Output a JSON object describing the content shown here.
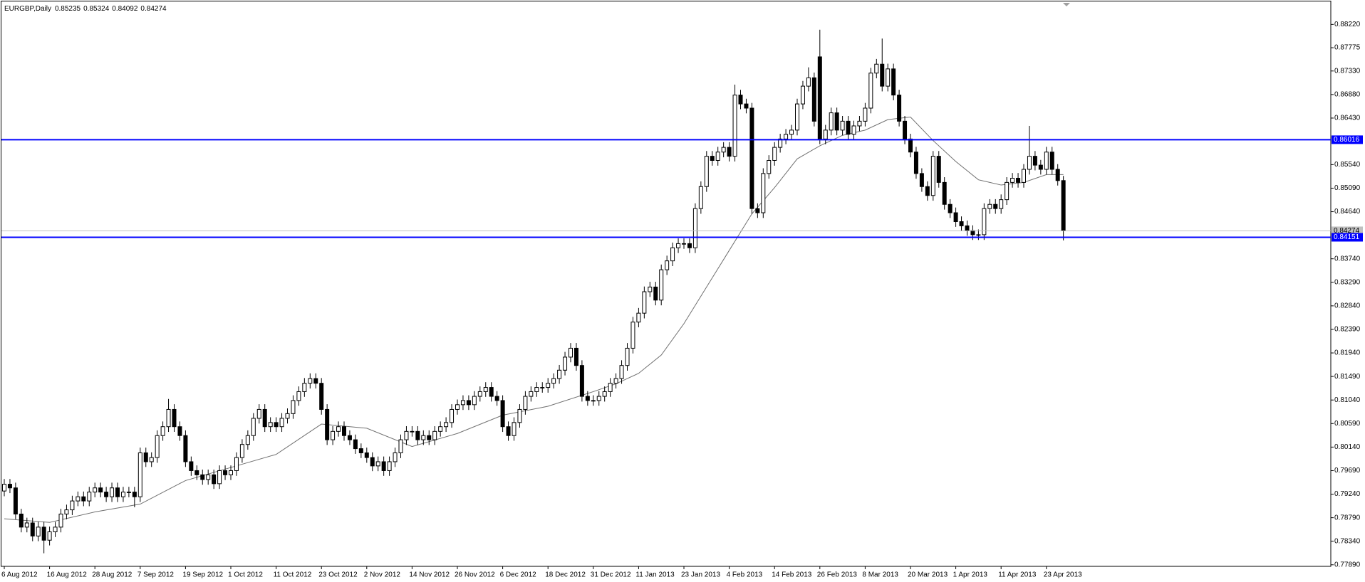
{
  "chart_data": {
    "type": "candlestick",
    "title": "EURGBP,Daily",
    "categories": [
      "6 Aug 2012",
      null,
      null,
      null,
      null,
      null,
      null,
      null,
      "16 Aug 2012",
      null,
      null,
      null,
      null,
      null,
      null,
      null,
      "28 Aug 2012",
      null,
      null,
      null,
      null,
      null,
      null,
      null,
      "7 Sep 2012",
      null,
      null,
      null,
      null,
      null,
      null,
      null,
      "19 Sep 2012",
      null,
      null,
      null,
      null,
      null,
      null,
      null,
      "1 Oct 2012",
      null,
      null,
      null,
      null,
      null,
      null,
      null,
      "11 Oct 2012",
      null,
      null,
      null,
      null,
      null,
      null,
      null,
      "23 Oct 2012",
      null,
      null,
      null,
      null,
      null,
      null,
      null,
      "2 Nov 2012",
      null,
      null,
      null,
      null,
      null,
      null,
      null,
      "14 Nov 2012",
      null,
      null,
      null,
      null,
      null,
      null,
      null,
      "26 Nov 2012",
      null,
      null,
      null,
      null,
      null,
      null,
      null,
      "6 Dec 2012",
      null,
      null,
      null,
      null,
      null,
      null,
      null,
      "18 Dec 2012",
      null,
      null,
      null,
      null,
      null,
      null,
      null,
      "31 Dec 2012",
      null,
      null,
      null,
      null,
      null,
      null,
      null,
      "11 Jan 2013",
      null,
      null,
      null,
      null,
      null,
      null,
      null,
      "23 Jan 2013",
      null,
      null,
      null,
      null,
      null,
      null,
      null,
      "4 Feb 2013",
      null,
      null,
      null,
      null,
      null,
      null,
      null,
      "14 Feb 2013",
      null,
      null,
      null,
      null,
      null,
      null,
      null,
      "26 Feb 2013",
      null,
      null,
      null,
      null,
      null,
      null,
      null,
      "8 Mar 2013",
      null,
      null,
      null,
      null,
      null,
      null,
      null,
      "20 Mar 2013",
      null,
      null,
      null,
      null,
      null,
      null,
      null,
      "1 Apr 2013",
      null,
      null,
      null,
      null,
      null,
      null,
      null,
      "11 Apr 2013",
      null,
      null,
      null,
      null,
      null,
      null,
      null,
      "23 Apr 2013",
      null,
      null,
      null
    ],
    "open": [
      0.793,
      0.7943,
      0.7936,
      0.7886,
      0.7861,
      0.7869,
      0.7844,
      0.7861,
      0.7836,
      0.7852,
      0.7861,
      0.7886,
      0.7894,
      0.7911,
      0.7919,
      0.7911,
      0.7928,
      0.7936,
      0.7928,
      0.7919,
      0.7936,
      0.7919,
      0.7928,
      0.7928,
      0.7919,
      0.8003,
      0.7986,
      0.7994,
      0.8036,
      0.8053,
      0.8086,
      0.8053,
      0.8036,
      0.7986,
      0.7969,
      0.7961,
      0.7952,
      0.7961,
      0.7944,
      0.7969,
      0.7961,
      0.7969,
      0.7994,
      0.8019,
      0.8036,
      0.8069,
      0.8086,
      0.8053,
      0.8061,
      0.8053,
      0.8069,
      0.8078,
      0.8103,
      0.812,
      0.8136,
      0.8145,
      0.8136,
      0.8086,
      0.8028,
      0.8044,
      0.8053,
      0.8036,
      0.8028,
      0.8011,
      0.8003,
      0.7994,
      0.7978,
      0.7986,
      0.7969,
      0.7986,
      0.8003,
      0.8028,
      0.8044,
      0.8044,
      0.8028,
      0.8036,
      0.8028,
      0.8044,
      0.8053,
      0.8061,
      0.8086,
      0.8095,
      0.8103,
      0.8095,
      0.8111,
      0.812,
      0.8128,
      0.8111,
      0.8103,
      0.8053,
      0.8036,
      0.8061,
      0.8086,
      0.8111,
      0.812,
      0.8128,
      0.8128,
      0.8136,
      0.8145,
      0.8161,
      0.8186,
      0.8203,
      0.817,
      0.8111,
      0.8103,
      0.8103,
      0.8111,
      0.812,
      0.8136,
      0.8145,
      0.817,
      0.8203,
      0.8253,
      0.827,
      0.8311,
      0.832,
      0.8295,
      0.8353,
      0.837,
      0.8395,
      0.8403,
      0.8403,
      0.8395,
      0.847,
      0.8512,
      0.857,
      0.8562,
      0.8578,
      0.8587,
      0.857,
      0.8687,
      0.867,
      0.8662,
      0.847,
      0.8462,
      0.8537,
      0.8562,
      0.8587,
      0.8603,
      0.8612,
      0.862,
      0.867,
      0.8704,
      0.872,
      0.876,
      0.8603,
      0.862,
      0.8653,
      0.862,
      0.8637,
      0.8612,
      0.8628,
      0.8637,
      0.8662,
      0.8729,
      0.8746,
      0.8704,
      0.8737,
      0.8687,
      0.8637,
      0.8603,
      0.8578,
      0.8537,
      0.8512,
      0.8495,
      0.857,
      0.852,
      0.8478,
      0.8462,
      0.8445,
      0.8437,
      0.8428,
      0.842,
      0.842,
      0.847,
      0.8478,
      0.847,
      0.8487,
      0.852,
      0.8528,
      0.852,
      0.8545,
      0.857,
      0.8553,
      0.8545,
      0.8578,
      0.8545,
      0.85235
    ],
    "high": [
      0.7953,
      0.7953,
      0.7946,
      0.7896,
      0.7879,
      0.7879,
      0.7871,
      0.7871,
      0.7862,
      0.7871,
      0.7896,
      0.7904,
      0.7921,
      0.7929,
      0.7929,
      0.7938,
      0.7946,
      0.7946,
      0.7938,
      0.7946,
      0.7946,
      0.7938,
      0.7938,
      0.7938,
      0.8013,
      0.8013,
      0.8004,
      0.8046,
      0.8063,
      0.8106,
      0.8096,
      0.8063,
      0.8046,
      0.7996,
      0.7979,
      0.7971,
      0.7971,
      0.7971,
      0.7979,
      0.7979,
      0.7979,
      0.8004,
      0.8029,
      0.8046,
      0.8079,
      0.8096,
      0.8096,
      0.8071,
      0.8071,
      0.8079,
      0.8088,
      0.8113,
      0.813,
      0.8146,
      0.8155,
      0.8155,
      0.8146,
      0.8096,
      0.8054,
      0.8063,
      0.8063,
      0.8046,
      0.8038,
      0.8021,
      0.8013,
      0.8004,
      0.7996,
      0.7996,
      0.7996,
      0.8013,
      0.8038,
      0.8054,
      0.8054,
      0.8054,
      0.8046,
      0.8046,
      0.8054,
      0.8063,
      0.8071,
      0.8096,
      0.8105,
      0.8113,
      0.8113,
      0.8121,
      0.813,
      0.8138,
      0.8138,
      0.8121,
      0.8113,
      0.8063,
      0.8071,
      0.8096,
      0.8121,
      0.813,
      0.8138,
      0.8138,
      0.8146,
      0.8155,
      0.8171,
      0.8196,
      0.8213,
      0.8213,
      0.818,
      0.8121,
      0.8113,
      0.8121,
      0.813,
      0.8146,
      0.8155,
      0.818,
      0.8213,
      0.8263,
      0.828,
      0.8321,
      0.833,
      0.833,
      0.8363,
      0.838,
      0.8405,
      0.8413,
      0.8413,
      0.8413,
      0.848,
      0.8522,
      0.858,
      0.858,
      0.8588,
      0.8597,
      0.8597,
      0.8707,
      0.8697,
      0.868,
      0.8672,
      0.848,
      0.8547,
      0.8572,
      0.8597,
      0.8613,
      0.8622,
      0.863,
      0.868,
      0.8714,
      0.874,
      0.873,
      0.8812,
      0.863,
      0.8663,
      0.8663,
      0.8647,
      0.8647,
      0.8638,
      0.8647,
      0.8672,
      0.8739,
      0.8756,
      0.8795,
      0.8747,
      0.8747,
      0.8697,
      0.8647,
      0.8613,
      0.8588,
      0.8547,
      0.8522,
      0.858,
      0.858,
      0.853,
      0.8488,
      0.8472,
      0.8455,
      0.8447,
      0.8438,
      0.843,
      0.848,
      0.8488,
      0.8488,
      0.8497,
      0.853,
      0.8538,
      0.8538,
      0.8555,
      0.8628,
      0.858,
      0.8563,
      0.8588,
      0.8588,
      0.8555,
      0.85324
    ],
    "low": [
      0.792,
      0.7926,
      0.7876,
      0.7851,
      0.7851,
      0.7834,
      0.7834,
      0.7811,
      0.7826,
      0.7842,
      0.7851,
      0.7876,
      0.7884,
      0.7901,
      0.7901,
      0.7901,
      0.7918,
      0.7918,
      0.7909,
      0.7909,
      0.7909,
      0.7909,
      0.7918,
      0.7899,
      0.7909,
      0.7976,
      0.7976,
      0.7984,
      0.8026,
      0.8043,
      0.8043,
      0.8026,
      0.7976,
      0.7959,
      0.7951,
      0.7942,
      0.7942,
      0.7934,
      0.7934,
      0.7951,
      0.7951,
      0.7959,
      0.7984,
      0.8009,
      0.8026,
      0.8059,
      0.8043,
      0.8043,
      0.8043,
      0.8043,
      0.8059,
      0.8068,
      0.8093,
      0.811,
      0.8126,
      0.8126,
      0.8076,
      0.8018,
      0.8018,
      0.8034,
      0.8026,
      0.8018,
      0.8001,
      0.7993,
      0.7984,
      0.7968,
      0.7968,
      0.7959,
      0.7959,
      0.7976,
      0.7993,
      0.8018,
      0.8034,
      0.8018,
      0.8018,
      0.8018,
      0.8018,
      0.8034,
      0.8043,
      0.8051,
      0.8076,
      0.8085,
      0.8085,
      0.8085,
      0.8101,
      0.811,
      0.8101,
      0.8093,
      0.8043,
      0.8026,
      0.8026,
      0.8051,
      0.8076,
      0.8101,
      0.811,
      0.8118,
      0.8118,
      0.8126,
      0.8135,
      0.8151,
      0.8176,
      0.816,
      0.8101,
      0.8093,
      0.8093,
      0.8093,
      0.8101,
      0.811,
      0.8126,
      0.8135,
      0.816,
      0.8193,
      0.8243,
      0.826,
      0.8301,
      0.8285,
      0.8285,
      0.8343,
      0.836,
      0.8385,
      0.8393,
      0.8385,
      0.8385,
      0.846,
      0.8502,
      0.8552,
      0.8552,
      0.8568,
      0.856,
      0.856,
      0.866,
      0.8652,
      0.846,
      0.8452,
      0.8452,
      0.8527,
      0.8552,
      0.8577,
      0.8593,
      0.8602,
      0.861,
      0.866,
      0.8694,
      0.8627,
      0.8593,
      0.8593,
      0.861,
      0.861,
      0.861,
      0.8602,
      0.8602,
      0.8618,
      0.8627,
      0.8652,
      0.8719,
      0.8694,
      0.8694,
      0.8677,
      0.8627,
      0.8593,
      0.8568,
      0.8527,
      0.8502,
      0.8485,
      0.8485,
      0.851,
      0.8468,
      0.8452,
      0.8435,
      0.8427,
      0.8418,
      0.841,
      0.841,
      0.841,
      0.846,
      0.846,
      0.846,
      0.8477,
      0.851,
      0.851,
      0.851,
      0.8535,
      0.8543,
      0.8535,
      0.8535,
      0.8535,
      0.8514,
      0.84092
    ],
    "close": [
      0.7943,
      0.7936,
      0.7886,
      0.7861,
      0.7869,
      0.7844,
      0.7861,
      0.7836,
      0.7852,
      0.7861,
      0.7886,
      0.7894,
      0.7911,
      0.7919,
      0.7911,
      0.7928,
      0.7936,
      0.7928,
      0.7919,
      0.7936,
      0.7919,
      0.7928,
      0.7928,
      0.7919,
      0.8003,
      0.7986,
      0.7994,
      0.8036,
      0.8053,
      0.8086,
      0.8053,
      0.8036,
      0.7986,
      0.7969,
      0.7961,
      0.7952,
      0.7961,
      0.7944,
      0.7969,
      0.7961,
      0.7969,
      0.7994,
      0.8019,
      0.8036,
      0.8069,
      0.8086,
      0.8053,
      0.8061,
      0.8053,
      0.8069,
      0.8078,
      0.8103,
      0.812,
      0.8136,
      0.8145,
      0.8136,
      0.8086,
      0.8028,
      0.8044,
      0.8053,
      0.8036,
      0.8028,
      0.8011,
      0.8003,
      0.7994,
      0.7978,
      0.7986,
      0.7969,
      0.7986,
      0.8003,
      0.8028,
      0.8044,
      0.8044,
      0.8028,
      0.8036,
      0.8028,
      0.8044,
      0.8053,
      0.8061,
      0.8086,
      0.8095,
      0.8103,
      0.8095,
      0.8111,
      0.812,
      0.8128,
      0.8111,
      0.8103,
      0.8053,
      0.8036,
      0.8061,
      0.8086,
      0.8111,
      0.812,
      0.8128,
      0.8128,
      0.8136,
      0.8145,
      0.8161,
      0.8186,
      0.8203,
      0.817,
      0.8111,
      0.8103,
      0.8103,
      0.8111,
      0.812,
      0.8136,
      0.8145,
      0.817,
      0.8203,
      0.8253,
      0.827,
      0.8311,
      0.832,
      0.8295,
      0.8353,
      0.837,
      0.8395,
      0.8403,
      0.8403,
      0.8395,
      0.847,
      0.8512,
      0.857,
      0.8562,
      0.8578,
      0.8587,
      0.857,
      0.8687,
      0.867,
      0.8662,
      0.847,
      0.8462,
      0.8537,
      0.8562,
      0.8587,
      0.8603,
      0.8612,
      0.862,
      0.867,
      0.8704,
      0.872,
      0.8637,
      0.8603,
      0.862,
      0.8653,
      0.862,
      0.8637,
      0.8612,
      0.8628,
      0.8637,
      0.8662,
      0.8729,
      0.8746,
      0.8704,
      0.8737,
      0.8687,
      0.8637,
      0.8603,
      0.8578,
      0.8537,
      0.8512,
      0.8495,
      0.857,
      0.852,
      0.8478,
      0.8462,
      0.8445,
      0.8437,
      0.8428,
      0.842,
      0.842,
      0.847,
      0.8478,
      0.847,
      0.8487,
      0.852,
      0.8528,
      0.852,
      0.8545,
      0.857,
      0.8553,
      0.8545,
      0.8578,
      0.8545,
      0.85235,
      0.84274
    ],
    "up_color": "#ffffff",
    "down_color": "#000000",
    "outline_color": "#000000",
    "ma": {
      "x": [
        0,
        8,
        16,
        24,
        32,
        40,
        48,
        56,
        64,
        72,
        80,
        88,
        96,
        104,
        108,
        112,
        116,
        120,
        124,
        128,
        132,
        136,
        140,
        144,
        148,
        152,
        156,
        160,
        164,
        168,
        172,
        176,
        180,
        184,
        187
      ],
      "values": [
        0.7877,
        0.787,
        0.789,
        0.7905,
        0.795,
        0.7975,
        0.8,
        0.8058,
        0.805,
        0.8015,
        0.804,
        0.8075,
        0.8092,
        0.812,
        0.8135,
        0.8155,
        0.819,
        0.825,
        0.832,
        0.839,
        0.846,
        0.851,
        0.8565,
        0.859,
        0.861,
        0.862,
        0.864,
        0.8645,
        0.86,
        0.856,
        0.8525,
        0.8515,
        0.852,
        0.8535,
        0.8535
      ],
      "color": "#707070"
    },
    "hlines": [
      {
        "value": 0.86016,
        "color": "#0000ff"
      },
      {
        "value": 0.84151,
        "color": "#0000ff"
      }
    ],
    "last_price": {
      "value": 0.84274,
      "color": "#c0c0c0"
    },
    "ylim": [
      0.7786,
      0.8866
    ],
    "yticks": [
      {
        "value": 0.8822,
        "label": "0.88220"
      },
      {
        "value": 0.87775,
        "label": "0.87775"
      },
      {
        "value": 0.8733,
        "label": "0.87330"
      },
      {
        "value": 0.8688,
        "label": "0.86880"
      },
      {
        "value": 0.8643,
        "label": "0.86430"
      },
      {
        "value": 0.8554,
        "label": "0.85540"
      },
      {
        "value": 0.8509,
        "label": "0.85090"
      },
      {
        "value": 0.8464,
        "label": "0.84640"
      },
      {
        "value": 0.8374,
        "label": "0.83740"
      },
      {
        "value": 0.8329,
        "label": "0.83290"
      },
      {
        "value": 0.8284,
        "label": "0.82840"
      },
      {
        "value": 0.8239,
        "label": "0.82390"
      },
      {
        "value": 0.8194,
        "label": "0.81940"
      },
      {
        "value": 0.8149,
        "label": "0.81490"
      },
      {
        "value": 0.8104,
        "label": "0.81040"
      },
      {
        "value": 0.8059,
        "label": "0.80590"
      },
      {
        "value": 0.8014,
        "label": "0.80140"
      },
      {
        "value": 0.7969,
        "label": "0.79690"
      },
      {
        "value": 0.7924,
        "label": "0.79240"
      },
      {
        "value": 0.7879,
        "label": "0.78790"
      },
      {
        "value": 0.7834,
        "label": "0.78340"
      },
      {
        "value": 0.7789,
        "label": "0.77890"
      }
    ]
  }
}
